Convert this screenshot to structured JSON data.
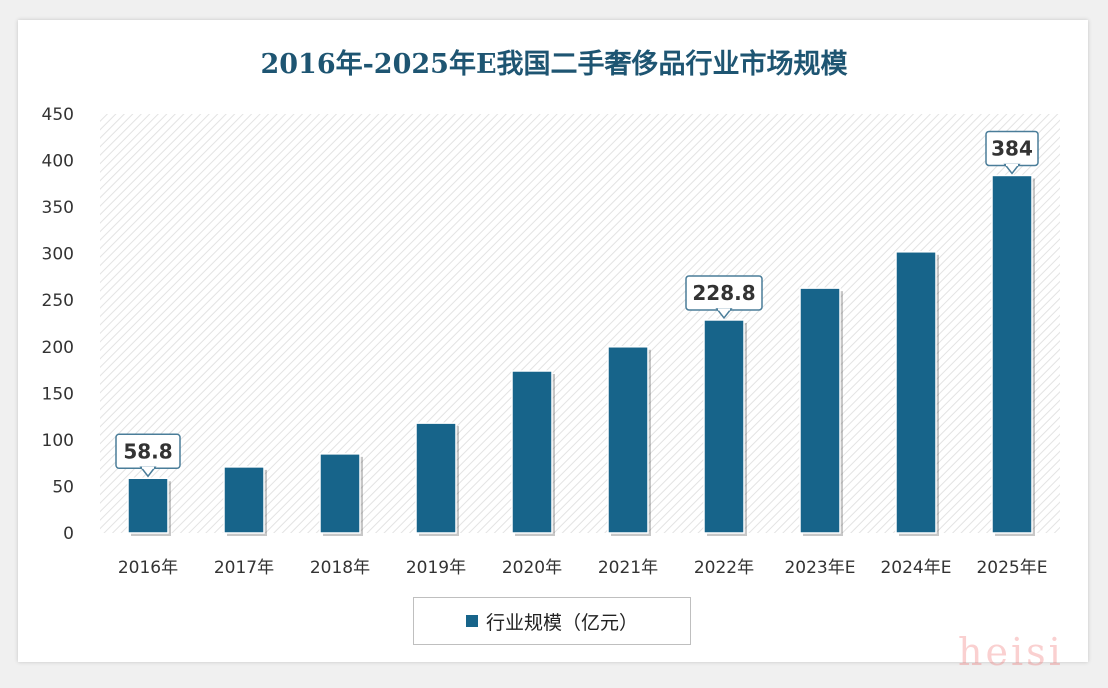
{
  "chart_data": {
    "type": "bar",
    "title": "2016年-2025年E我国二手奢侈品行业市场规模",
    "categories": [
      "2016年",
      "2017年",
      "2018年",
      "2019年",
      "2020年",
      "2021年",
      "2022年",
      "2023年E",
      "2024年E",
      "2025年E"
    ],
    "series": [
      {
        "name": "行业规模（亿元）",
        "values": [
          58.8,
          71,
          85,
          118,
          174,
          200,
          228.8,
          263,
          302,
          384
        ]
      }
    ],
    "data_labels": [
      "58.8",
      "228.8",
      "384"
    ],
    "y_ticks": [
      "0",
      "50",
      "100",
      "150",
      "200",
      "250",
      "300",
      "350",
      "400",
      "450"
    ],
    "ylim": [
      0,
      450
    ],
    "grid": false,
    "legend_position": "bottom",
    "bar_color": "#17648a"
  },
  "watermark": "heisi"
}
